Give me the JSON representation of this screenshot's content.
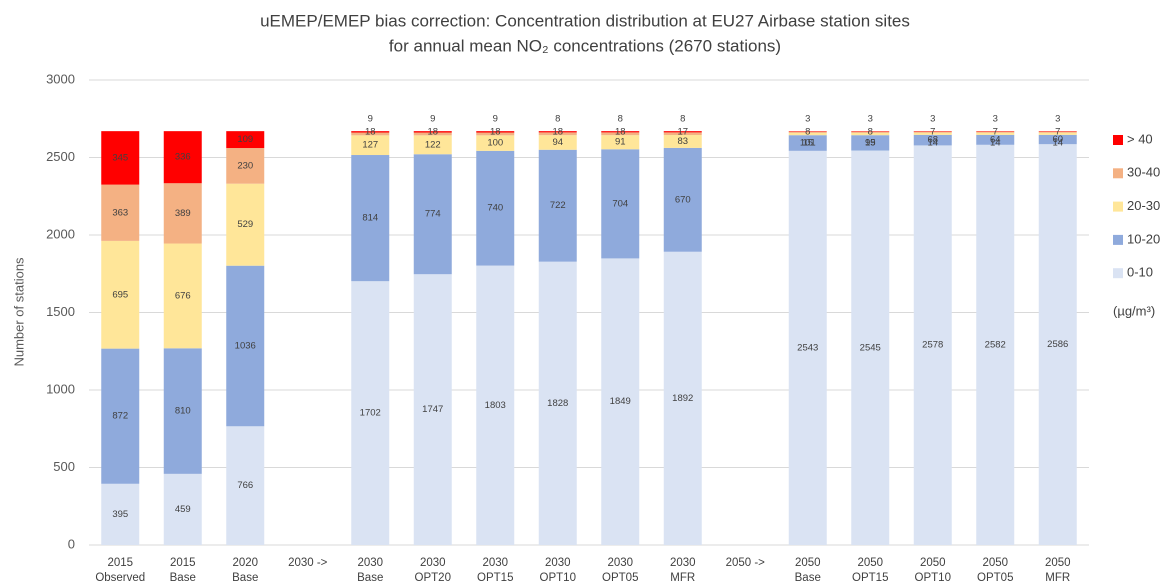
{
  "chart_data": {
    "type": "stacked_bar",
    "title": [
      "uEMEP/EMEP bias correction: Concentration distribution at EU27 Airbase station sites",
      "for annual mean NO₂ concentrations (2670 stations)"
    ],
    "ylabel": "Number of stations",
    "legend_note": "(µg/m³)",
    "categories": [
      [
        "2015",
        "Observed"
      ],
      [
        "2015",
        "Base"
      ],
      [
        "2020",
        "Base"
      ],
      [
        "2030 ->"
      ],
      [
        "2030",
        "Base"
      ],
      [
        "2030",
        "OPT20"
      ],
      [
        "2030",
        "OPT15"
      ],
      [
        "2030",
        "OPT10"
      ],
      [
        "2030",
        "OPT05"
      ],
      [
        "2030",
        "MFR"
      ],
      [
        "2050 ->"
      ],
      [
        "2050",
        "Base"
      ],
      [
        "2050",
        "OPT15"
      ],
      [
        "2050",
        "OPT10"
      ],
      [
        "2050",
        "OPT05"
      ],
      [
        "2050",
        "MFR"
      ]
    ],
    "series": [
      {
        "name": "0-10",
        "color": "#dae3f3",
        "values": [
          395,
          459,
          766,
          null,
          1702,
          1747,
          1803,
          1828,
          1849,
          1892,
          null,
          2543,
          2545,
          2578,
          2582,
          2586
        ]
      },
      {
        "name": "10-20",
        "color": "#8faadc",
        "values": [
          872,
          810,
          1036,
          null,
          814,
          774,
          740,
          722,
          704,
          670,
          null,
          101,
          99,
          68,
          64,
          60
        ]
      },
      {
        "name": "20-30",
        "color": "#ffe699",
        "values": [
          695,
          676,
          529,
          null,
          127,
          122,
          100,
          94,
          91,
          83,
          null,
          15,
          15,
          14,
          14,
          14
        ]
      },
      {
        "name": "30-40",
        "color": "#f4b183",
        "values": [
          363,
          389,
          230,
          null,
          18,
          18,
          18,
          18,
          18,
          17,
          null,
          8,
          8,
          7,
          7,
          7
        ]
      },
      {
        "name": "> 40",
        "color": "#ff0000",
        "values": [
          345,
          336,
          109,
          null,
          9,
          9,
          9,
          8,
          8,
          8,
          null,
          3,
          3,
          3,
          3,
          3
        ]
      }
    ],
    "ylim": [
      0,
      3000
    ],
    "yticks": [
      0,
      500,
      1000,
      1500,
      2000,
      2500,
      3000
    ],
    "grid": true,
    "legend": "right"
  }
}
